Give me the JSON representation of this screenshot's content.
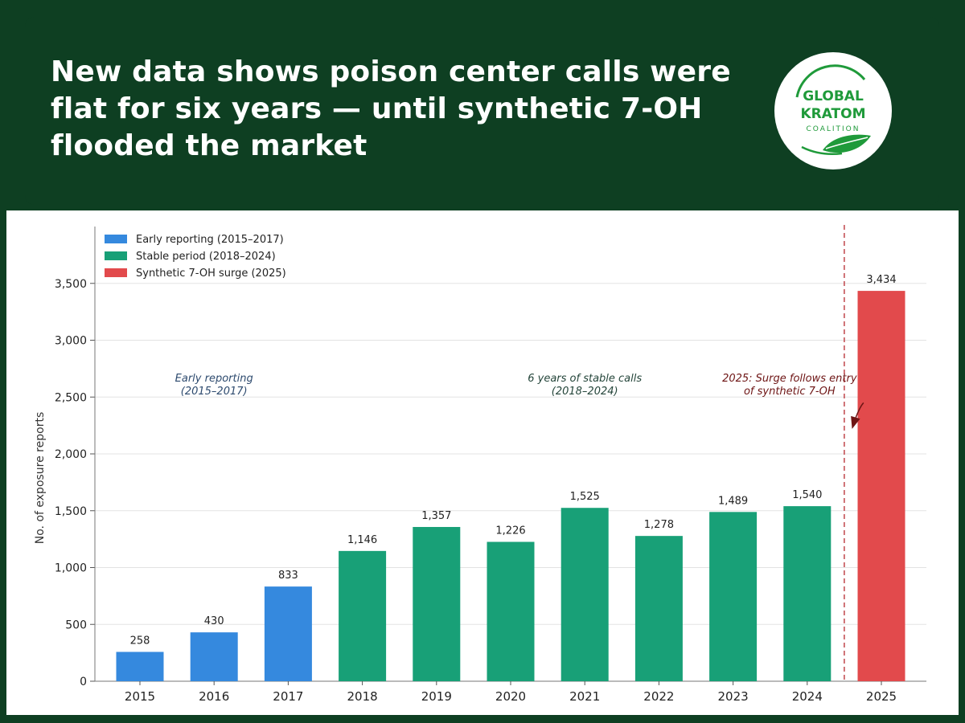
{
  "header": {
    "headline": "New data shows poison center calls were flat for six years — until synthetic 7-OH flooded the market",
    "background": "#0e3f22"
  },
  "logo": {
    "line1": "GLOBAL",
    "line2": "KRATOM",
    "line3": "COALITION",
    "icon": "leaf-icon",
    "color": "#1f9a3a"
  },
  "chart_data": {
    "type": "bar",
    "categories": [
      "2015",
      "2016",
      "2017",
      "2018",
      "2019",
      "2020",
      "2021",
      "2022",
      "2023",
      "2024",
      "2025"
    ],
    "values": [
      258,
      430,
      833,
      1146,
      1357,
      1226,
      1525,
      1278,
      1489,
      1540,
      3434
    ],
    "value_labels": [
      "258",
      "430",
      "833",
      "1,146",
      "1,357",
      "1,226",
      "1,525",
      "1,278",
      "1,489",
      "1,540",
      "3,434"
    ],
    "period_of_bar": [
      0,
      0,
      0,
      1,
      1,
      1,
      1,
      1,
      1,
      1,
      2
    ],
    "title": "",
    "xlabel": "",
    "ylabel": "No. of exposure reports",
    "ylim": [
      0,
      4000
    ],
    "yticks": [
      0,
      500,
      1000,
      1500,
      2000,
      2500,
      3000,
      3500
    ],
    "ytick_labels": [
      "0",
      "500",
      "1,000",
      "1,500",
      "2,000",
      "2,500",
      "3,000",
      "3,500"
    ],
    "grid": true,
    "legend_position": "top-left",
    "legend": [
      {
        "name": "Early reporting (2015–2017)",
        "color": "#3589de"
      },
      {
        "name": "Stable period (2018–2024)",
        "color": "#18a077"
      },
      {
        "name": "Synthetic 7-OH surge (2025)",
        "color": "#e24a4c"
      }
    ],
    "annotations": [
      {
        "lines": [
          "Early reporting",
          "(2015–2017)"
        ],
        "color": "#2d4a6e",
        "x": 2016,
        "y": 2600
      },
      {
        "lines": [
          "6 years of stable calls",
          "(2018–2024)"
        ],
        "color": "#24453a",
        "x": 2021,
        "y": 2600
      },
      {
        "lines": [
          "2025: Surge follows entry",
          "of synthetic 7-OH"
        ],
        "color": "#6e1515",
        "x": 2024,
        "y": 2600
      }
    ],
    "reference_line": {
      "x": 2024.5,
      "style": "dashed",
      "color": "#c0454a"
    }
  }
}
